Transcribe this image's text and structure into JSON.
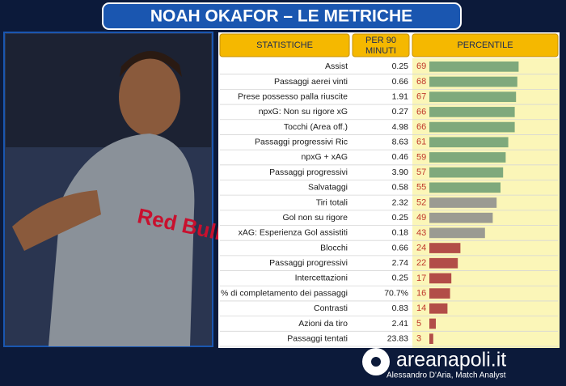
{
  "title": "NOAH OKAFOR – LE METRICHE",
  "table": {
    "headers": [
      "STATISTICHE",
      "PER 90 MINUTI",
      "PERCENTILE"
    ],
    "rows": [
      {
        "stat": "Assist",
        "per90": "0.25",
        "percentile": 69
      },
      {
        "stat": "Passaggi aerei vinti",
        "per90": "0.66",
        "percentile": 68
      },
      {
        "stat": "Prese possesso palla riuscite",
        "per90": "1.91",
        "percentile": 67
      },
      {
        "stat": "npxG: Non su rigore xG",
        "per90": "0.27",
        "percentile": 66
      },
      {
        "stat": "Tocchi (Area off.)",
        "per90": "4.98",
        "percentile": 66
      },
      {
        "stat": "Passaggi progressivi Ric",
        "per90": "8.63",
        "percentile": 61
      },
      {
        "stat": "npxG + xAG",
        "per90": "0.46",
        "percentile": 59
      },
      {
        "stat": "Passaggi progressivi",
        "per90": "3.90",
        "percentile": 57
      },
      {
        "stat": "Salvataggi",
        "per90": "0.58",
        "percentile": 55
      },
      {
        "stat": "Tiri totali",
        "per90": "2.32",
        "percentile": 52
      },
      {
        "stat": "Gol non su rigore",
        "per90": "0.25",
        "percentile": 49
      },
      {
        "stat": "xAG: Esperienza Gol assistiti",
        "per90": "0.18",
        "percentile": 43
      },
      {
        "stat": "Blocchi",
        "per90": "0.66",
        "percentile": 24
      },
      {
        "stat": "Passaggi progressivi",
        "per90": "2.74",
        "percentile": 22
      },
      {
        "stat": "Intercettazioni",
        "per90": "0.25",
        "percentile": 17
      },
      {
        "stat": "% di completamento dei passaggi",
        "per90": "70.7%",
        "percentile": 16
      },
      {
        "stat": "Contrasti",
        "per90": "0.83",
        "percentile": 14
      },
      {
        "stat": "Azioni da tiro",
        "per90": "2.41",
        "percentile": 5
      },
      {
        "stat": "Passaggi tentati",
        "per90": "23.83",
        "percentile": 3
      }
    ]
  },
  "footer": {
    "brand": "areanapoli.it",
    "author": "Alessandro D'Aria, Match Analyst"
  }
}
